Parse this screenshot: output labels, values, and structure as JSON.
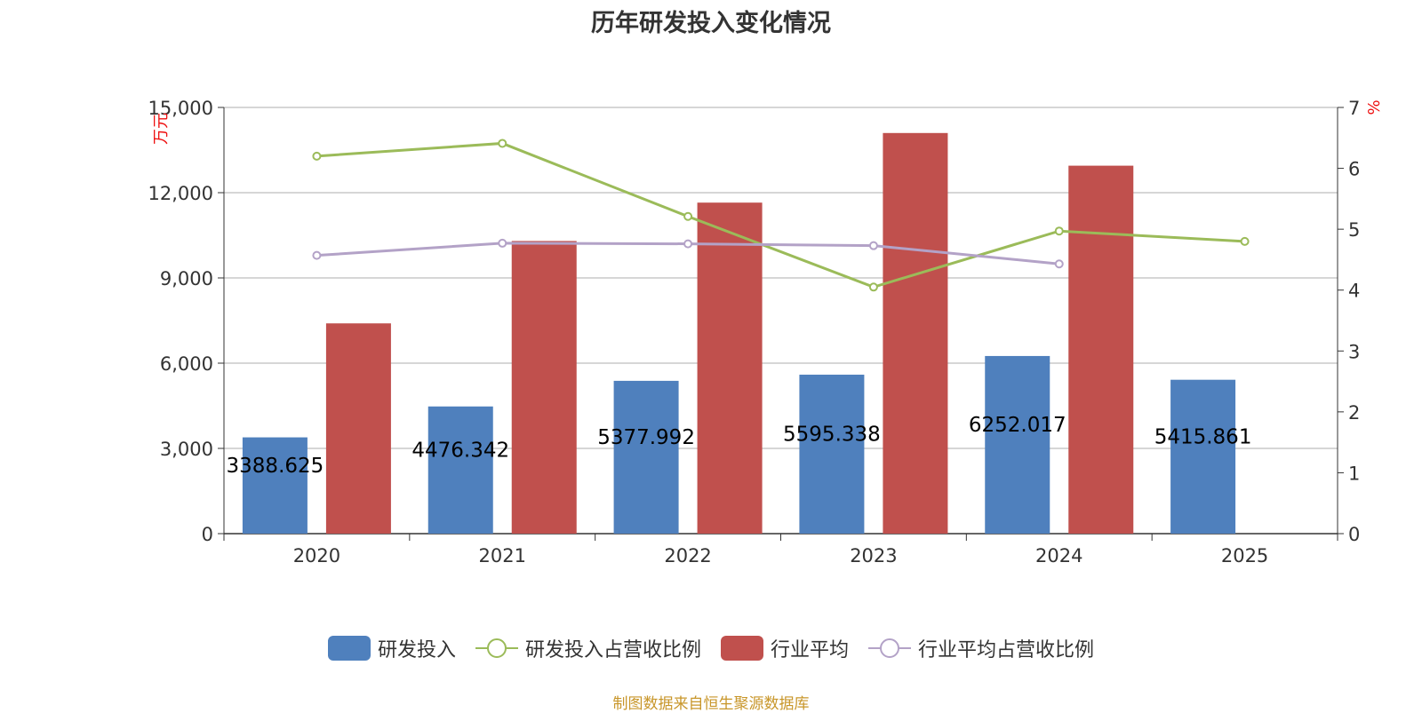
{
  "title": "历年研发投入变化情况",
  "y_left_unit": "万元",
  "y_right_unit": "%",
  "source": "制图数据来自恒生聚源数据库",
  "colors": {
    "rd_bar": "#4f80bd",
    "industry_bar": "#c0504d",
    "rd_ratio_line": "#9bbb59",
    "industry_ratio_line": "#b3a2c7",
    "grid": "#c8c8c8",
    "axis": "#333333"
  },
  "legend": [
    {
      "label": "研发投入",
      "kind": "bar",
      "color": "#4f80bd"
    },
    {
      "label": "研发投入占营收比例",
      "kind": "line",
      "color": "#9bbb59"
    },
    {
      "label": "行业平均",
      "kind": "bar",
      "color": "#c0504d"
    },
    {
      "label": "行业平均占营收比例",
      "kind": "line",
      "color": "#b3a2c7"
    }
  ],
  "chart_data": {
    "type": "bar",
    "title": "历年研发投入变化情况",
    "categories": [
      "2020",
      "2021",
      "2022",
      "2023",
      "2024",
      "2025"
    ],
    "y_left": {
      "label": "万元",
      "range": [
        0,
        15000
      ],
      "ticks": [
        0,
        3000,
        6000,
        9000,
        12000,
        15000
      ],
      "tick_labels": [
        "0",
        "3,000",
        "6,000",
        "9,000",
        "12,000",
        "15,000"
      ]
    },
    "y_right": {
      "label": "%",
      "range": [
        0,
        7
      ],
      "ticks": [
        0,
        1,
        2,
        3,
        4,
        5,
        6,
        7
      ],
      "tick_labels": [
        "0",
        "1",
        "2",
        "3",
        "4",
        "5",
        "6",
        "7"
      ]
    },
    "grid": true,
    "legend_position": "bottom",
    "series": [
      {
        "name": "研发投入",
        "type": "bar",
        "axis": "left",
        "values": [
          3388.625,
          4476.342,
          5377.992,
          5595.338,
          6252.017,
          5415.861
        ],
        "data_labels": [
          "3388.625",
          "4476.342",
          "5377.992",
          "5595.338",
          "6252.017",
          "5415.861"
        ]
      },
      {
        "name": "行业平均",
        "type": "bar",
        "axis": "left",
        "values": [
          7400,
          10300,
          11650,
          14100,
          12950,
          null
        ]
      },
      {
        "name": "研发投入占营收比例",
        "type": "line",
        "axis": "right",
        "values": [
          6.2,
          6.41,
          5.21,
          4.05,
          4.97,
          4.8
        ]
      },
      {
        "name": "行业平均占营收比例",
        "type": "line",
        "axis": "right",
        "values": [
          4.57,
          4.77,
          4.76,
          4.73,
          4.43,
          null
        ]
      }
    ]
  }
}
